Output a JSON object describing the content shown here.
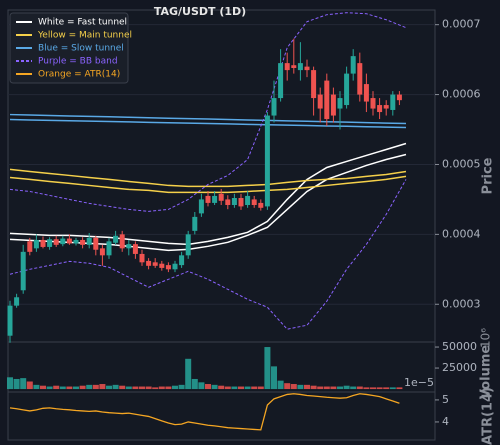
{
  "chart_data": [
    {
      "type": "candlestick",
      "title": "TAG/USDT (1D)",
      "ylabel": "Price",
      "ylim": [
        0.000246,
        0.000721
      ],
      "yticks": [
        0.0003,
        0.0004,
        0.0005,
        0.0006,
        0.0007
      ],
      "grid": true,
      "legend": "upper left",
      "up_color": "#26a69a",
      "down_color": "#ef5350",
      "open": [
        0.000255,
        0.000298,
        0.00032,
        0.00039,
        0.00038,
        0.000392,
        0.000382,
        0.000393,
        0.000386,
        0.000394,
        0.000387,
        0.000392,
        0.000385,
        0.000395,
        0.00038,
        0.00037,
        0.000388,
        0.0004,
        0.00038,
        0.000386,
        0.000372,
        0.000362,
        0.00036,
        0.000358,
        0.000356,
        0.00035,
        0.000356,
        0.00037,
        0.000405,
        0.00043,
        0.000455,
        0.000445,
        0.000458,
        0.00045,
        0.000442,
        0.000452,
        0.000442,
        0.00045,
        0.000445,
        0.00044,
        0.00057,
        0.000595,
        0.000645,
        0.000642,
        0.000635,
        0.00064,
        0.000635,
        0.0006,
        0.00062,
        0.0006,
        0.00058,
        0.000585,
        0.00063,
        0.000645,
        0.000615,
        0.000595,
        0.000585,
        0.000585,
        0.000578,
        0.0006
      ],
      "close": [
        0.000298,
        0.00031,
        0.000375,
        0.000375,
        0.000392,
        0.000382,
        0.000393,
        0.000385,
        0.000394,
        0.000387,
        0.000392,
        0.000385,
        0.000395,
        0.000378,
        0.00037,
        0.00039,
        0.000398,
        0.00038,
        0.000386,
        0.000372,
        0.00036,
        0.000355,
        0.000355,
        0.000352,
        0.00035,
        0.000358,
        0.00037,
        0.0004,
        0.000425,
        0.00045,
        0.000445,
        0.000455,
        0.000448,
        0.000442,
        0.000452,
        0.00044,
        0.000455,
        0.000442,
        0.000438,
        0.00057,
        0.000595,
        0.000645,
        0.000635,
        0.000638,
        0.000645,
        0.000635,
        0.000595,
        0.00058,
        0.000565,
        0.00057,
        0.000595,
        0.00063,
        0.000655,
        0.0006,
        0.00059,
        0.00058,
        0.000575,
        0.00058,
        0.0006,
        0.000592
      ],
      "high": [
        0.000305,
        0.000315,
        0.000385,
        0.000395,
        0.0004,
        0.000397,
        0.000396,
        0.000398,
        0.000398,
        0.0004,
        0.000395,
        0.000396,
        0.000402,
        0.000398,
        0.000385,
        0.000395,
        0.000405,
        0.000405,
        0.000392,
        0.00039,
        0.000378,
        0.000366,
        0.000366,
        0.000362,
        0.00036,
        0.000362,
        0.000375,
        0.000405,
        0.000432,
        0.000458,
        0.000462,
        0.000462,
        0.000465,
        0.000456,
        0.000458,
        0.000458,
        0.000462,
        0.000455,
        0.00045,
        0.000575,
        0.00062,
        0.000665,
        0.00066,
        0.00068,
        0.000675,
        0.00065,
        0.00064,
        0.00061,
        0.00063,
        0.00061,
        0.000605,
        0.00064,
        0.000665,
        0.00066,
        0.00063,
        0.000605,
        0.000595,
        0.000592,
        0.000605,
        0.000605
      ],
      "low": [
        0.000245,
        0.000295,
        0.000315,
        0.00037,
        0.000375,
        0.00038,
        0.000378,
        0.000382,
        0.000383,
        0.000385,
        0.000384,
        0.00038,
        0.00038,
        0.00037,
        0.000355,
        0.000365,
        0.000385,
        0.000375,
        0.00037,
        0.000365,
        0.000355,
        0.00035,
        0.000352,
        0.000348,
        0.000346,
        0.000346,
        0.000352,
        0.000365,
        0.0004,
        0.000425,
        0.00044,
        0.000442,
        0.000442,
        0.000436,
        0.000438,
        0.000435,
        0.000438,
        0.000438,
        0.000434,
        0.000435,
        0.00056,
        0.00059,
        0.00062,
        0.00063,
        0.00062,
        0.000625,
        0.00057,
        0.00056,
        0.000555,
        0.00056,
        0.00055,
        0.00058,
        0.00062,
        0.00059,
        0.000575,
        0.00057,
        0.000565,
        0.00057,
        0.00057,
        0.000585
      ],
      "overlays": [
        {
          "name": "White = Fast tunnel",
          "color": "#ffffff",
          "dashed": false,
          "upper": [
            0.0004014,
            0.0004,
            0.0003986,
            0.0003986,
            0.0003971,
            0.0003957,
            0.0003929,
            0.00039,
            0.0003871,
            0.0003857,
            0.00039,
            0.0003957,
            0.0004029,
            0.0004186,
            0.00045,
            0.0004786,
            0.0004957,
            0.0005043,
            0.0005129,
            0.0005214,
            0.00053
          ],
          "lower": [
            0.0003929,
            0.0003914,
            0.00039,
            0.0003886,
            0.0003871,
            0.0003857,
            0.0003829,
            0.00038,
            0.0003771,
            0.0003786,
            0.0003829,
            0.0003886,
            0.0003986,
            0.00041,
            0.0004357,
            0.0004614,
            0.0004786,
            0.0004886,
            0.0004986,
            0.0005071,
            0.0005143
          ]
        },
        {
          "name": "Yellow = Main tunnel",
          "color": "#f5d04a",
          "dashed": false,
          "upper": [
            0.0004929,
            0.00049,
            0.0004871,
            0.0004843,
            0.0004814,
            0.0004786,
            0.0004757,
            0.0004729,
            0.00047,
            0.0004686,
            0.0004686,
            0.0004686,
            0.00047,
            0.0004714,
            0.0004743,
            0.0004771,
            0.0004786,
            0.00048,
            0.0004829,
            0.0004857,
            0.00049
          ],
          "lower": [
            0.0004814,
            0.0004786,
            0.0004757,
            0.0004729,
            0.00047,
            0.0004671,
            0.0004643,
            0.0004629,
            0.00046,
            0.00046,
            0.00046,
            0.00046,
            0.0004614,
            0.0004629,
            0.0004643,
            0.0004671,
            0.00047,
            0.0004729,
            0.0004757,
            0.0004786,
            0.0004829
          ]
        },
        {
          "name": "Blue = Slow tunnel",
          "color": "#5aa9e6",
          "dashed": false,
          "upper": [
            0.0005714,
            0.0005707,
            0.0005701,
            0.0005694,
            0.0005688,
            0.0005682,
            0.0005675,
            0.0005669,
            0.0005662,
            0.0005656,
            0.000565,
            0.0005643,
            0.0005637,
            0.000563,
            0.0005624,
            0.0005618,
            0.0005611,
            0.0005605,
            0.0005598,
            0.0005592,
            0.0005586
          ],
          "lower": [
            0.0005643,
            0.0005637,
            0.0005631,
            0.0005626,
            0.000562,
            0.0005614,
            0.0005609,
            0.0005603,
            0.0005597,
            0.0005591,
            0.0005586,
            0.000558,
            0.0005574,
            0.0005569,
            0.0005563,
            0.0005557,
            0.0005551,
            0.0005546,
            0.000554,
            0.0005534,
            0.0005529
          ]
        },
        {
          "name": "Purple = BB band",
          "color": "#8a63ff",
          "dashed": true,
          "upper": [
            0.0004643,
            0.0004614,
            0.0004557,
            0.00045,
            0.0004443,
            0.00044,
            0.0004357,
            0.0004329,
            0.0004357,
            0.00045,
            0.0004714,
            0.0004843,
            0.0005071,
            0.0005786,
            0.0006671,
            0.0007043,
            0.0007143,
            0.0007171,
            0.0007157,
            0.0007071,
            0.0006957
          ],
          "lower": [
            0.0003429,
            0.00035,
            0.0003557,
            0.0003614,
            0.0003586,
            0.0003529,
            0.0003386,
            0.0003243,
            0.0003357,
            0.0003471,
            0.0003357,
            0.0003214,
            0.0003071,
            0.0002957,
            0.0002643,
            0.00027,
            0.0003043,
            0.00035,
            0.0003857,
            0.0004286,
            0.0004786
          ]
        }
      ]
    },
    {
      "type": "bar",
      "ylabel": "Volume",
      "y_offset_label": "10⁶",
      "ylim": [
        -3500,
        56000
      ],
      "yticks": [
        25000,
        50000
      ],
      "values": [
        14000,
        12000,
        13000,
        9000,
        5000,
        4000,
        3000,
        4000,
        3000,
        3000,
        3000,
        4000,
        5000,
        5000,
        6000,
        4000,
        5000,
        4000,
        3000,
        3000,
        3000,
        3000,
        2000,
        3000,
        3000,
        4000,
        5000,
        36000,
        12000,
        8000,
        6000,
        5000,
        4000,
        3000,
        3000,
        3000,
        3000,
        3000,
        3000,
        50000,
        27000,
        10000,
        7000,
        6000,
        5000,
        5000,
        4000,
        3000,
        3000,
        3000,
        3000,
        4000,
        3000,
        3000,
        2000,
        2000,
        2000,
        2000,
        2000,
        2000
      ]
    },
    {
      "type": "line",
      "ylabel": "ATR(14)",
      "y_offset_label": "1e−5",
      "ylim": [
        3.18,
        5.36
      ],
      "yticks": [
        4,
        5
      ],
      "series": [
        {
          "name": "Orange = ATR(14)",
          "color": "#f5a623",
          "values": [
            4.64,
            4.6,
            4.55,
            4.5,
            4.55,
            4.62,
            4.64,
            4.6,
            4.57,
            4.55,
            4.52,
            4.5,
            4.48,
            4.5,
            4.45,
            4.42,
            4.4,
            4.38,
            4.4,
            4.35,
            4.3,
            4.25,
            4.15,
            4.05,
            3.95,
            3.88,
            3.9,
            4,
            3.95,
            3.9,
            3.85,
            3.82,
            3.78,
            3.74,
            3.72,
            3.7,
            3.68,
            3.66,
            3.64,
            4.77,
            5.05,
            5.15,
            5.25,
            5.28,
            5.25,
            5.2,
            5.18,
            5.15,
            5.12,
            5.1,
            5.08,
            5.1,
            5.2,
            5.28,
            5.25,
            5.2,
            5.15,
            5.05,
            4.95,
            4.85
          ]
        }
      ]
    }
  ]
}
